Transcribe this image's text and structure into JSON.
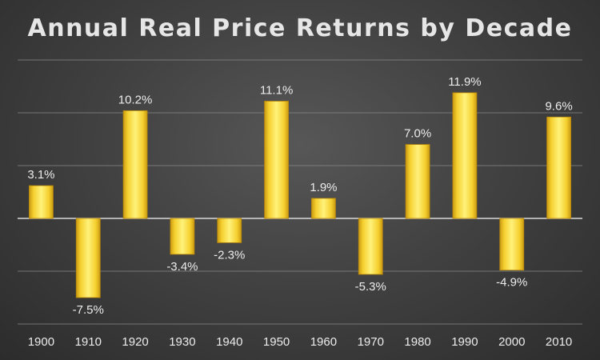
{
  "chart_data": {
    "type": "bar",
    "title": "Annual Real Price Returns by Decade",
    "xlabel": "",
    "ylabel": "",
    "categories": [
      "1900",
      "1910",
      "1920",
      "1930",
      "1940",
      "1950",
      "1960",
      "1970",
      "1980",
      "1990",
      "2000",
      "2010"
    ],
    "values": [
      3.1,
      -7.5,
      10.2,
      -3.4,
      -2.3,
      11.1,
      1.9,
      -5.3,
      7.0,
      11.9,
      -4.9,
      9.6
    ],
    "data_labels": [
      "3.1%",
      "-7.5%",
      "10.2%",
      "-3.4%",
      "-2.3%",
      "11.1%",
      "1.9%",
      "-5.3%",
      "7.0%",
      "11.9%",
      "-4.9%",
      "9.6%"
    ],
    "ylim": [
      -10,
      15
    ],
    "y_gridlines": [
      -10,
      -5,
      0,
      5,
      10,
      15
    ],
    "y_axis_tick_labels_shown": false,
    "grid": true,
    "legend": "none",
    "colors": {
      "bar_fill": "#f7d33a",
      "bar_highlight": "#fff27a",
      "bar_shadow": "#b8860b",
      "background": "#3a3a3a",
      "gridline": "#8a8a8a",
      "zero_line": "#d9d9d9",
      "text": "#ececec"
    }
  }
}
